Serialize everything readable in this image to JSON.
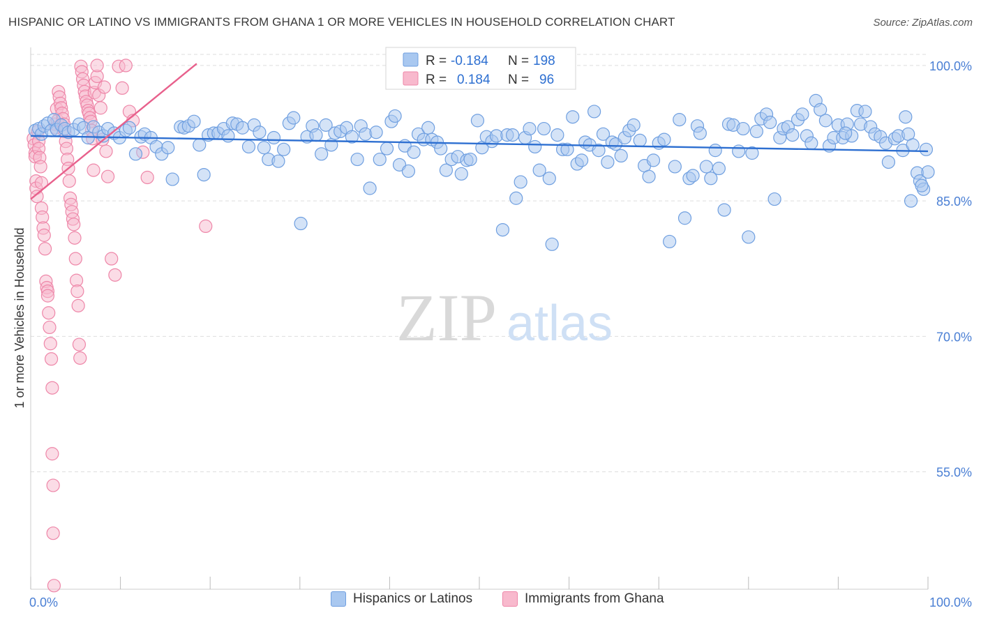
{
  "title": "HISPANIC OR LATINO VS IMMIGRANTS FROM GHANA 1 OR MORE VEHICLES IN HOUSEHOLD CORRELATION CHART",
  "source": "Source: ZipAtlas.com",
  "watermark": {
    "zip": "ZIP",
    "atlas": "atlas"
  },
  "colors": {
    "blue_fill": "#a9c8f0",
    "blue_stroke": "#6f9fe0",
    "blue_line": "#2d6fd1",
    "pink_fill": "#f8b9cd",
    "pink_stroke": "#ee86a8",
    "pink_line": "#e8608c",
    "axis_text": "#4a7fd4",
    "grid": "#dddddd"
  },
  "chart_data": {
    "type": "scatter",
    "title": "HISPANIC OR LATINO VS IMMIGRANTS FROM GHANA 1 OR MORE VEHICLES IN HOUSEHOLD CORRELATION CHART",
    "xlabel": "",
    "ylabel": "1 or more Vehicles in Household",
    "xlim": [
      0,
      100
    ],
    "ylim": [
      42,
      102
    ],
    "x_tick_labels": [
      "0.0%",
      "100.0%"
    ],
    "y_ticks": [
      55,
      70,
      85,
      100
    ],
    "y_tick_labels": [
      "55.0%",
      "70.0%",
      "85.0%",
      "100.0%"
    ],
    "grid": true,
    "legend_position": "top-center",
    "stats_legend": [
      {
        "series": "Hispanics or Latinos",
        "r_label": "R =",
        "r_value": "-0.184",
        "n_label": "N =",
        "n_value": "198"
      },
      {
        "series": "Immigrants from Ghana",
        "r_label": "R =",
        "r_value": "0.184",
        "n_label": "N =",
        "n_value": "96"
      }
    ],
    "series": [
      {
        "name": "Hispanics or Latinos",
        "color": "#6f9fe0",
        "trend": {
          "x": [
            0,
            100
          ],
          "y": [
            92.2,
            90.5
          ]
        },
        "points": [
          [
            0.5,
            92.8
          ],
          [
            0.9,
            93.0
          ],
          [
            1.2,
            92.4
          ],
          [
            1.5,
            93.3
          ],
          [
            1.9,
            93.6
          ],
          [
            2.3,
            92.8
          ],
          [
            2.6,
            94.0
          ],
          [
            2.9,
            92.9
          ],
          [
            3.4,
            93.4
          ],
          [
            3.8,
            93.0
          ],
          [
            4.2,
            92.6
          ],
          [
            4.8,
            92.9
          ],
          [
            5.4,
            93.5
          ],
          [
            5.9,
            93.1
          ],
          [
            6.4,
            92.0
          ],
          [
            7.0,
            93.2
          ],
          [
            7.6,
            92.6
          ],
          [
            8.1,
            92.2
          ],
          [
            8.6,
            93.0
          ],
          [
            9.3,
            92.5
          ],
          [
            9.9,
            92.0
          ],
          [
            10.6,
            92.8
          ],
          [
            11.0,
            93.1
          ],
          [
            11.7,
            90.2
          ],
          [
            12.3,
            92.1
          ],
          [
            12.7,
            92.4
          ],
          [
            13.4,
            92.0
          ],
          [
            14.0,
            91.0
          ],
          [
            14.6,
            90.2
          ],
          [
            15.3,
            90.9
          ],
          [
            15.8,
            87.4
          ],
          [
            16.7,
            93.2
          ],
          [
            17.1,
            93.1
          ],
          [
            17.6,
            93.3
          ],
          [
            18.2,
            93.8
          ],
          [
            18.8,
            91.2
          ],
          [
            19.3,
            87.9
          ],
          [
            19.8,
            92.3
          ],
          [
            20.4,
            92.5
          ],
          [
            20.9,
            92.5
          ],
          [
            21.5,
            93.0
          ],
          [
            22.0,
            92.2
          ],
          [
            22.5,
            93.6
          ],
          [
            23.0,
            93.5
          ],
          [
            23.6,
            93.1
          ],
          [
            24.3,
            91.0
          ],
          [
            24.9,
            93.4
          ],
          [
            25.5,
            92.6
          ],
          [
            26.0,
            90.9
          ],
          [
            26.5,
            89.6
          ],
          [
            27.1,
            92.0
          ],
          [
            27.6,
            89.4
          ],
          [
            28.2,
            90.7
          ],
          [
            28.8,
            93.6
          ],
          [
            29.3,
            94.2
          ],
          [
            30.1,
            82.5
          ],
          [
            30.8,
            92.1
          ],
          [
            31.4,
            93.3
          ],
          [
            31.8,
            92.3
          ],
          [
            32.4,
            90.2
          ],
          [
            32.9,
            93.4
          ],
          [
            33.5,
            91.2
          ],
          [
            33.9,
            92.5
          ],
          [
            34.5,
            92.7
          ],
          [
            35.2,
            93.1
          ],
          [
            35.8,
            92.1
          ],
          [
            36.4,
            89.6
          ],
          [
            36.8,
            93.3
          ],
          [
            37.3,
            92.4
          ],
          [
            37.8,
            86.4
          ],
          [
            38.5,
            92.6
          ],
          [
            38.9,
            89.6
          ],
          [
            39.7,
            90.8
          ],
          [
            40.2,
            93.8
          ],
          [
            40.6,
            94.4
          ],
          [
            41.1,
            89.0
          ],
          [
            41.7,
            91.1
          ],
          [
            42.1,
            88.3
          ],
          [
            42.7,
            90.4
          ],
          [
            43.2,
            92.4
          ],
          [
            43.8,
            91.8
          ],
          [
            44.3,
            93.1
          ],
          [
            44.7,
            91.8
          ],
          [
            45.3,
            91.5
          ],
          [
            45.7,
            90.8
          ],
          [
            46.3,
            88.4
          ],
          [
            46.9,
            89.6
          ],
          [
            47.6,
            89.9
          ],
          [
            48.0,
            88.0
          ],
          [
            48.6,
            89.5
          ],
          [
            49.0,
            89.6
          ],
          [
            49.8,
            93.9
          ],
          [
            50.3,
            90.9
          ],
          [
            50.8,
            92.1
          ],
          [
            51.4,
            91.6
          ],
          [
            51.9,
            92.2
          ],
          [
            52.6,
            81.8
          ],
          [
            53.1,
            92.3
          ],
          [
            53.7,
            92.3
          ],
          [
            54.1,
            85.3
          ],
          [
            54.6,
            87.1
          ],
          [
            55.1,
            92.0
          ],
          [
            55.6,
            93.0
          ],
          [
            56.2,
            91.0
          ],
          [
            56.7,
            88.4
          ],
          [
            57.2,
            93.0
          ],
          [
            57.8,
            87.5
          ],
          [
            58.1,
            80.2
          ],
          [
            58.7,
            92.3
          ],
          [
            59.3,
            90.7
          ],
          [
            59.8,
            90.7
          ],
          [
            60.4,
            94.3
          ],
          [
            60.9,
            89.1
          ],
          [
            61.4,
            89.5
          ],
          [
            61.8,
            91.5
          ],
          [
            62.3,
            91.2
          ],
          [
            62.8,
            94.9
          ],
          [
            63.3,
            90.6
          ],
          [
            63.8,
            92.4
          ],
          [
            64.3,
            89.3
          ],
          [
            64.8,
            91.5
          ],
          [
            65.2,
            91.3
          ],
          [
            65.8,
            90.0
          ],
          [
            66.2,
            92.0
          ],
          [
            66.7,
            92.8
          ],
          [
            67.2,
            93.4
          ],
          [
            67.9,
            91.7
          ],
          [
            68.4,
            88.9
          ],
          [
            68.9,
            87.7
          ],
          [
            69.4,
            89.5
          ],
          [
            70.0,
            91.4
          ],
          [
            70.6,
            91.8
          ],
          [
            71.2,
            80.5
          ],
          [
            71.8,
            88.8
          ],
          [
            72.3,
            94.0
          ],
          [
            72.9,
            83.1
          ],
          [
            73.4,
            87.5
          ],
          [
            73.8,
            87.8
          ],
          [
            74.3,
            93.3
          ],
          [
            74.6,
            92.5
          ],
          [
            75.3,
            88.8
          ],
          [
            75.8,
            87.5
          ],
          [
            76.3,
            90.6
          ],
          [
            76.7,
            88.6
          ],
          [
            77.3,
            84.0
          ],
          [
            77.8,
            93.5
          ],
          [
            78.3,
            93.4
          ],
          [
            78.9,
            90.5
          ],
          [
            79.4,
            93.0
          ],
          [
            80.0,
            81.0
          ],
          [
            80.4,
            90.3
          ],
          [
            80.9,
            92.7
          ],
          [
            81.4,
            94.1
          ],
          [
            82.0,
            94.6
          ],
          [
            82.4,
            93.7
          ],
          [
            82.9,
            85.2
          ],
          [
            83.5,
            92.0
          ],
          [
            83.9,
            93.0
          ],
          [
            84.4,
            93.2
          ],
          [
            84.9,
            92.3
          ],
          [
            85.5,
            94.0
          ],
          [
            86.0,
            94.6
          ],
          [
            86.5,
            92.2
          ],
          [
            87.0,
            91.4
          ],
          [
            87.5,
            96.1
          ],
          [
            88.0,
            95.1
          ],
          [
            88.6,
            93.9
          ],
          [
            89.0,
            91.1
          ],
          [
            89.5,
            92.0
          ],
          [
            90.0,
            93.4
          ],
          [
            90.5,
            92.0
          ],
          [
            91.0,
            93.5
          ],
          [
            91.5,
            92.2
          ],
          [
            92.1,
            95.0
          ],
          [
            92.5,
            93.5
          ],
          [
            93.0,
            94.9
          ],
          [
            93.6,
            93.2
          ],
          [
            94.1,
            92.4
          ],
          [
            94.7,
            92.1
          ],
          [
            95.3,
            91.4
          ],
          [
            95.6,
            89.3
          ],
          [
            96.3,
            91.9
          ],
          [
            96.7,
            92.2
          ],
          [
            97.2,
            90.6
          ],
          [
            97.8,
            92.4
          ],
          [
            98.3,
            91.2
          ],
          [
            98.8,
            88.1
          ],
          [
            99.1,
            87.2
          ],
          [
            99.5,
            86.3
          ],
          [
            100.0,
            88.2
          ],
          [
            99.3,
            86.7
          ],
          [
            98.1,
            85.0
          ],
          [
            97.5,
            94.3
          ],
          [
            99.8,
            90.7
          ],
          [
            90.8,
            92.5
          ]
        ]
      },
      {
        "name": "Immigrants from Ghana",
        "color": "#ee86a8",
        "trend": {
          "x": [
            0,
            18.5
          ],
          "y": [
            85.2,
            100.2
          ]
        },
        "points": [
          [
            0.3,
            91.9
          ],
          [
            0.4,
            91.2
          ],
          [
            0.5,
            90.3
          ],
          [
            0.5,
            89.9
          ],
          [
            0.6,
            87.2
          ],
          [
            0.6,
            86.4
          ],
          [
            0.7,
            85.5
          ],
          [
            0.8,
            92.7
          ],
          [
            0.9,
            91.6
          ],
          [
            0.9,
            90.8
          ],
          [
            1.0,
            89.8
          ],
          [
            1.1,
            88.8
          ],
          [
            1.2,
            87.0
          ],
          [
            1.2,
            84.2
          ],
          [
            1.3,
            83.2
          ],
          [
            1.4,
            82.0
          ],
          [
            1.5,
            81.2
          ],
          [
            1.6,
            79.7
          ],
          [
            1.7,
            76.1
          ],
          [
            1.8,
            75.4
          ],
          [
            1.9,
            75.0
          ],
          [
            1.9,
            74.5
          ],
          [
            2.0,
            72.6
          ],
          [
            2.1,
            71.0
          ],
          [
            2.2,
            69.2
          ],
          [
            2.3,
            67.5
          ],
          [
            2.4,
            64.3
          ],
          [
            2.4,
            57.0
          ],
          [
            2.5,
            53.5
          ],
          [
            2.5,
            48.2
          ],
          [
            2.6,
            42.4
          ],
          [
            2.7,
            93.5
          ],
          [
            2.8,
            93.1
          ],
          [
            2.9,
            95.2
          ],
          [
            3.0,
            93.9
          ],
          [
            3.1,
            97.1
          ],
          [
            3.2,
            96.5
          ],
          [
            3.3,
            95.8
          ],
          [
            3.4,
            95.3
          ],
          [
            3.5,
            94.7
          ],
          [
            3.6,
            94.1
          ],
          [
            3.7,
            93.5
          ],
          [
            3.8,
            92.7
          ],
          [
            3.9,
            91.6
          ],
          [
            4.0,
            90.8
          ],
          [
            4.1,
            89.6
          ],
          [
            4.2,
            88.6
          ],
          [
            4.3,
            87.2
          ],
          [
            4.4,
            85.3
          ],
          [
            4.5,
            84.6
          ],
          [
            4.6,
            83.8
          ],
          [
            4.7,
            83.0
          ],
          [
            4.8,
            82.4
          ],
          [
            4.9,
            80.9
          ],
          [
            5.0,
            78.6
          ],
          [
            5.1,
            76.2
          ],
          [
            5.2,
            75.0
          ],
          [
            5.3,
            73.4
          ],
          [
            5.4,
            69.1
          ],
          [
            5.5,
            67.6
          ],
          [
            5.6,
            99.9
          ],
          [
            5.7,
            99.3
          ],
          [
            5.8,
            98.5
          ],
          [
            5.9,
            97.8
          ],
          [
            6.0,
            97.1
          ],
          [
            6.1,
            96.6
          ],
          [
            6.2,
            96.0
          ],
          [
            6.3,
            95.6
          ],
          [
            6.4,
            95.0
          ],
          [
            6.5,
            94.7
          ],
          [
            6.6,
            94.2
          ],
          [
            6.7,
            93.8
          ],
          [
            6.8,
            92.8
          ],
          [
            6.9,
            91.9
          ],
          [
            7.0,
            88.4
          ],
          [
            7.1,
            97.0
          ],
          [
            7.2,
            98.1
          ],
          [
            7.4,
            98.8
          ],
          [
            7.6,
            96.7
          ],
          [
            7.8,
            95.3
          ],
          [
            8.0,
            91.8
          ],
          [
            7.4,
            100.0
          ],
          [
            8.2,
            97.6
          ],
          [
            8.4,
            90.5
          ],
          [
            8.6,
            87.7
          ],
          [
            9.0,
            78.6
          ],
          [
            9.4,
            76.8
          ],
          [
            9.8,
            99.9
          ],
          [
            10.2,
            97.5
          ],
          [
            10.6,
            100.0
          ],
          [
            11.0,
            94.9
          ],
          [
            11.4,
            93.9
          ],
          [
            12.5,
            90.4
          ],
          [
            13.0,
            87.6
          ],
          [
            19.5,
            82.2
          ]
        ]
      }
    ]
  },
  "legend_bottom": [
    "Hispanics or Latinos",
    "Immigrants from Ghana"
  ]
}
